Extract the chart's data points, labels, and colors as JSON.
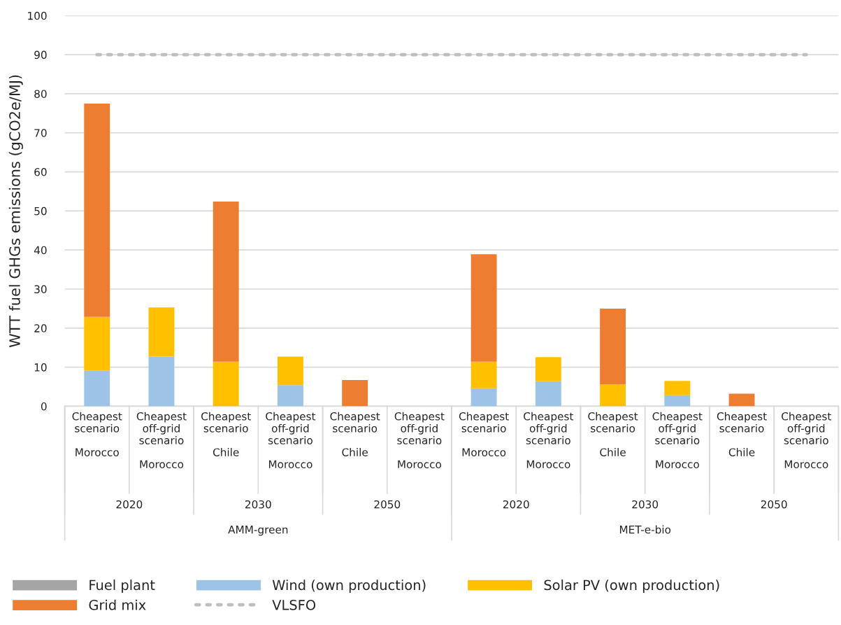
{
  "chart_data": {
    "type": "bar",
    "stacked": true,
    "ylabel": "WTT fuel GHGs emissions (gCO2e/MJ)",
    "categories": [
      "Cheapest\nscenario\n\nMorocco",
      "Cheapest\noff-grid\nscenario\n\nMorocco",
      "Cheapest\nscenario\n\nChile",
      "Cheapest\noff-grid\nscenario\n\nMorocco",
      "Cheapest\nscenario\n\nChile",
      "Cheapest\noff-grid\nscenario\n\nMorocco",
      "Cheapest\nscenario\n\nMorocco",
      "Cheapest\noff-grid\nscenario\n\nMorocco",
      "Cheapest\nscenario\n\nChile",
      "Cheapest\noff-grid\nscenario\n\nMorocco",
      "Cheapest\nscenario\n\nChile",
      "Cheapest\noff-grid\nscenario\n\nMorocco"
    ],
    "series": [
      {
        "name": "Fuel plant",
        "color": "#a5a5a5",
        "values": [
          0,
          0,
          0,
          0,
          0,
          0,
          null,
          null,
          0,
          0,
          0,
          0
        ]
      },
      {
        "name": "Wind (own production)",
        "color": "#9dc3e6",
        "values": [
          9.1,
          12.7,
          0,
          5.4,
          0,
          0,
          4.6,
          6.4,
          0,
          2.8,
          0,
          0
        ]
      },
      {
        "name": "Solar PV (own production)",
        "color": "#ffc000",
        "values": [
          13.8,
          12.6,
          11.4,
          7.3,
          0,
          0,
          6.8,
          6.2,
          5.6,
          3.7,
          0,
          0
        ]
      },
      {
        "name": "Grid mix",
        "color": "#ed7d31",
        "values": [
          54.6,
          0,
          41.0,
          0,
          6.7,
          0,
          27.5,
          0,
          19.4,
          0,
          3.2,
          0
        ]
      },
      {
        "name": "VLSFO",
        "type": "line",
        "color": "#bfbfbf",
        "line_style": "dotted",
        "values": [
          90,
          90,
          90,
          90,
          90,
          90,
          90,
          90,
          90,
          90,
          90,
          90
        ]
      }
    ],
    "annotations": [
      "2020",
      "2030",
      "2050",
      "2020",
      "2030",
      "2050",
      "AMM-green",
      "MET-e-bio"
    ],
    "ylim": [
      0,
      100
    ],
    "yticks": [
      0,
      10,
      20,
      30,
      40,
      50,
      60,
      70,
      80,
      90,
      100
    ],
    "grid": "y",
    "legend": "bottom"
  }
}
